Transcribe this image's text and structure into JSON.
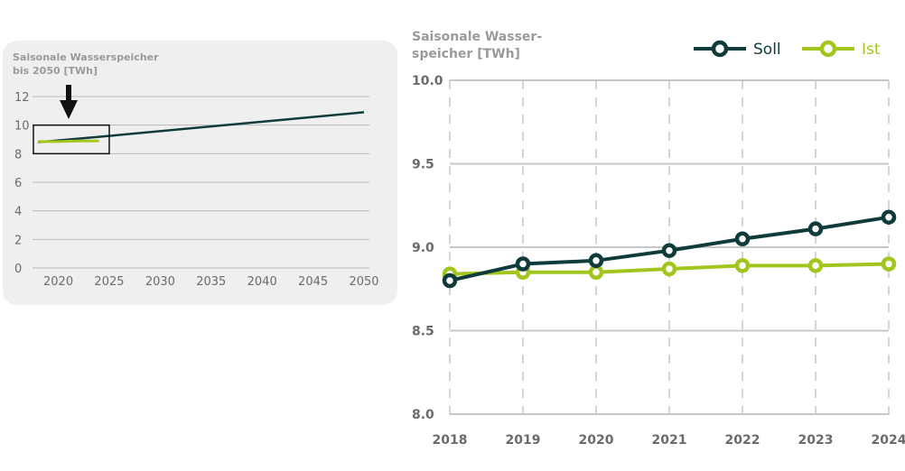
{
  "chart_data": [
    {
      "type": "line",
      "title": "Saisonale Wasserspeicher bis 2050 [TWh]",
      "title_lines": [
        "Saisonale Wasserspeicher",
        "bis 2050 [TWh]"
      ],
      "x_ticks": [
        2020,
        2025,
        2030,
        2035,
        2040,
        2045,
        2050
      ],
      "y_ticks": [
        0,
        2,
        4,
        6,
        8,
        10,
        12
      ],
      "xlim": [
        2018,
        2050
      ],
      "ylim": [
        0,
        12
      ],
      "grid": "horizontal",
      "annotation": "highlight box 2018–2025, 8–10 TWh with downward arrow",
      "series": [
        {
          "key": "soll",
          "color": "#0f3b3b",
          "x": [
            2018,
            2024,
            2050
          ],
          "y": [
            8.8,
            9.18,
            10.9
          ]
        },
        {
          "key": "ist",
          "color": "#a3c61e",
          "x": [
            2018,
            2019,
            2020,
            2021,
            2022,
            2023,
            2024
          ],
          "y": [
            8.84,
            8.85,
            8.85,
            8.87,
            8.89,
            8.89,
            8.9
          ]
        }
      ]
    },
    {
      "type": "line",
      "title": "Saisonale Wasser-speicher [TWh]",
      "title_lines": [
        "Saisonale Wasser-",
        "speicher [TWh]"
      ],
      "x": [
        2018,
        2019,
        2020,
        2021,
        2022,
        2023,
        2024
      ],
      "y_ticks": [
        "10.0",
        "9.5",
        "9.0",
        "8.5",
        "8.0"
      ],
      "xlim": [
        2018,
        2024
      ],
      "ylim": [
        8.0,
        10.0
      ],
      "grid": "both",
      "legend": "top-right",
      "series": [
        {
          "name": "Soll",
          "color": "#0f3b3b",
          "values": [
            8.8,
            8.9,
            8.92,
            8.98,
            9.05,
            9.11,
            9.18
          ]
        },
        {
          "name": "Ist",
          "color": "#a3c61e",
          "values": [
            8.84,
            8.85,
            8.85,
            8.87,
            8.89,
            8.89,
            8.9
          ]
        }
      ]
    }
  ]
}
